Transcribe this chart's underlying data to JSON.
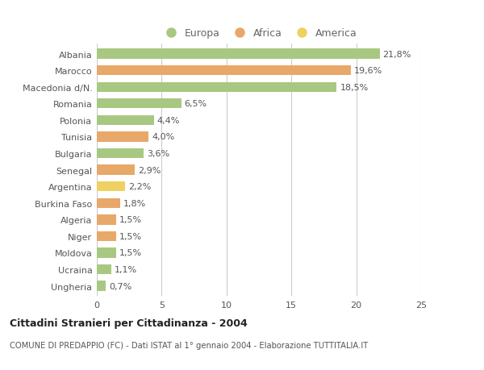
{
  "countries": [
    "Albania",
    "Marocco",
    "Macedonia d/N.",
    "Romania",
    "Polonia",
    "Tunisia",
    "Bulgaria",
    "Senegal",
    "Argentina",
    "Burkina Faso",
    "Algeria",
    "Niger",
    "Moldova",
    "Ucraina",
    "Ungheria"
  ],
  "values": [
    21.8,
    19.6,
    18.5,
    6.5,
    4.4,
    4.0,
    3.6,
    2.9,
    2.2,
    1.8,
    1.5,
    1.5,
    1.5,
    1.1,
    0.7
  ],
  "labels": [
    "21,8%",
    "19,6%",
    "18,5%",
    "6,5%",
    "4,4%",
    "4,0%",
    "3,6%",
    "2,9%",
    "2,2%",
    "1,8%",
    "1,5%",
    "1,5%",
    "1,5%",
    "1,1%",
    "0,7%"
  ],
  "continents": [
    "Europa",
    "Africa",
    "Europa",
    "Europa",
    "Europa",
    "Africa",
    "Europa",
    "Africa",
    "America",
    "Africa",
    "Africa",
    "Africa",
    "Europa",
    "Europa",
    "Europa"
  ],
  "colors": {
    "Europa": "#a8c882",
    "Africa": "#e8a86a",
    "America": "#f0d060"
  },
  "title": "Cittadini Stranieri per Cittadinanza - 2004",
  "subtitle": "COMUNE DI PREDAPPIO (FC) - Dati ISTAT al 1° gennaio 2004 - Elaborazione TUTTITALIA.IT",
  "xlim": [
    0,
    25
  ],
  "xticks": [
    0,
    5,
    10,
    15,
    20,
    25
  ],
  "bg_color": "#ffffff",
  "grid_color": "#cccccc",
  "bar_height": 0.6,
  "label_fontsize": 8,
  "ytick_fontsize": 8,
  "xtick_fontsize": 8
}
